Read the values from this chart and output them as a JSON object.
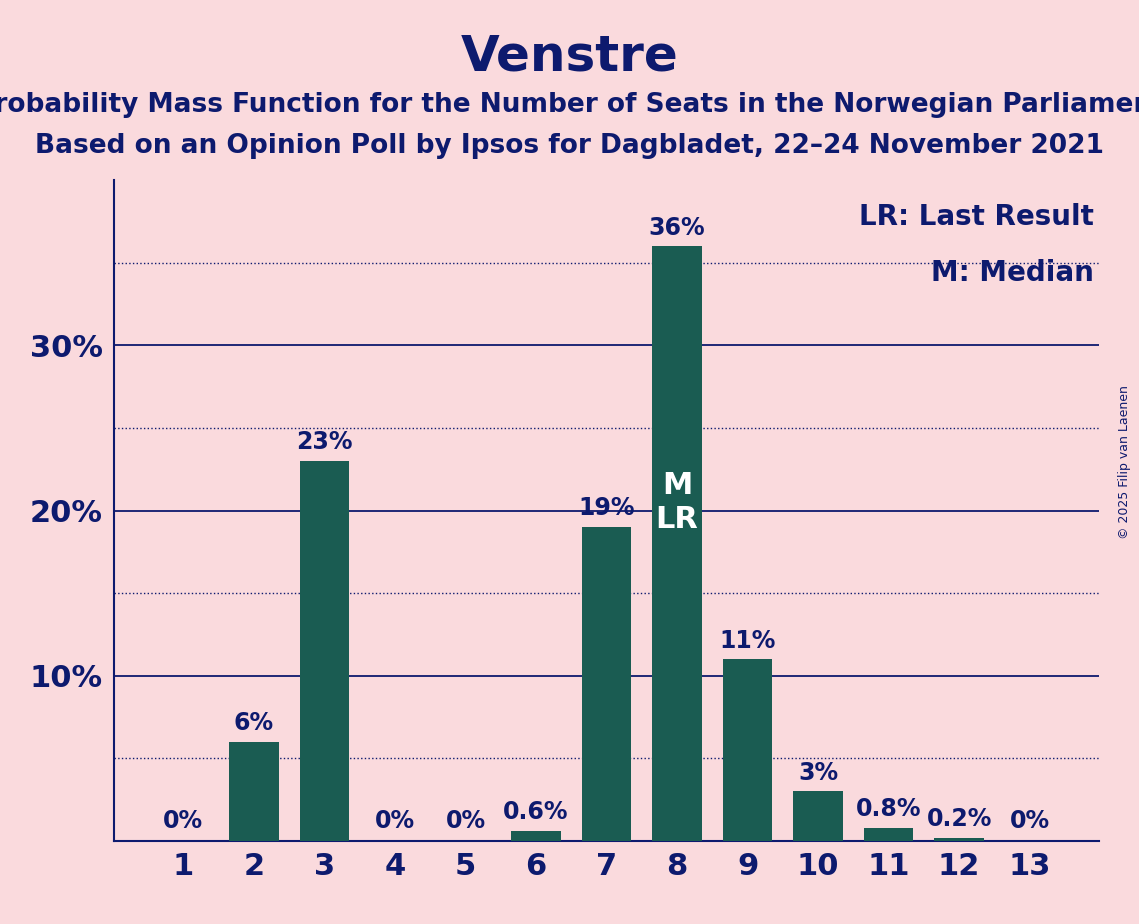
{
  "title": "Venstre",
  "subtitle1": "Probability Mass Function for the Number of Seats in the Norwegian Parliament",
  "subtitle2": "Based on an Opinion Poll by Ipsos for Dagbladet, 22–24 November 2021",
  "copyright": "© 2025 Filip van Laenen",
  "categories": [
    1,
    2,
    3,
    4,
    5,
    6,
    7,
    8,
    9,
    10,
    11,
    12,
    13
  ],
  "values": [
    0.0,
    6.0,
    23.0,
    0.0,
    0.0,
    0.6,
    19.0,
    36.0,
    11.0,
    3.0,
    0.8,
    0.2,
    0.0
  ],
  "labels": [
    "0%",
    "6%",
    "23%",
    "0%",
    "0%",
    "0.6%",
    "19%",
    "36%",
    "11%",
    "3%",
    "0.8%",
    "0.2%",
    "0%"
  ],
  "bar_color": "#1a5c52",
  "background_color": "#fadadd",
  "title_color": "#0d1a6e",
  "axis_color": "#0d1a6e",
  "label_color": "#0d1a6e",
  "median_seat": 8,
  "last_result_seat": 8,
  "legend_lr": "LR: Last Result",
  "legend_m": "M: Median",
  "ylim": [
    0,
    40
  ],
  "yticks_solid": [
    10,
    20,
    30
  ],
  "yticks_dotted": [
    5,
    15,
    25,
    35
  ],
  "title_fontsize": 36,
  "subtitle_fontsize": 19,
  "tick_fontsize": 22,
  "label_fontsize": 17,
  "legend_fontsize": 20,
  "copyright_fontsize": 9,
  "mlr_fontsize": 22
}
